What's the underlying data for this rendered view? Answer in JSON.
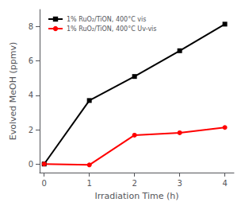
{
  "chart_data": {
    "type": "line",
    "xlabel": "Irradiation Time (h)",
    "ylabel": "Evolved MeOH (ppmv)",
    "x": [
      0,
      1,
      2,
      3,
      4
    ],
    "series": [
      {
        "name": "1% RuO₂/TiON, 400°C vis",
        "color": "#000000",
        "marker": "square",
        "line_style": "solid",
        "values": [
          0,
          3.7,
          5.1,
          6.6,
          8.15
        ]
      },
      {
        "name": "1% RuO₂/TiON, 400°C Uv-vis",
        "color": "#ff0000",
        "marker": "circle",
        "line_style": "solid",
        "values": [
          0,
          -0.05,
          1.68,
          1.82,
          2.13
        ]
      }
    ],
    "xlim": [
      -0.1,
      4.2
    ],
    "ylim": [
      -0.5,
      9.0
    ],
    "xticks": [
      0,
      1,
      2,
      3,
      4
    ],
    "yticks": [
      0,
      2,
      4,
      6,
      8
    ],
    "grid": false,
    "legend": "upper left"
  }
}
